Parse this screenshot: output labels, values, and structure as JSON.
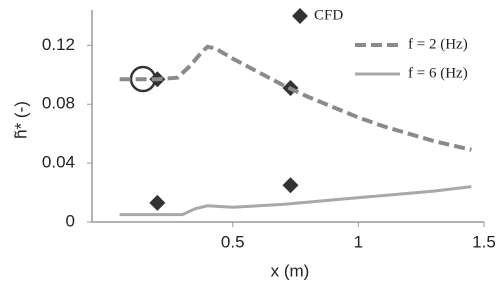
{
  "chart_data": {
    "type": "line",
    "xlabel": "x (m)",
    "ylabel": "h̃* (-)",
    "xlim": [
      -0.06,
      1.5
    ],
    "xticks": [
      0.5,
      1,
      1.5
    ],
    "ylim": [
      0,
      0.144
    ],
    "yticks": [
      0,
      0.04,
      0.08,
      0.12
    ],
    "legend": "top-right",
    "series": [
      {
        "name": "CFD",
        "color": "#333333",
        "mode": "markers",
        "x": [
          0.2,
          0.73,
          0.2,
          0.73
        ],
        "values": [
          0.097,
          0.091,
          0.013,
          0.025
        ]
      },
      {
        "name": "f = 2 (Hz)",
        "color": "#8a8a8a",
        "mode": "dashed",
        "x": [
          0.05,
          0.2,
          0.28,
          0.33,
          0.38,
          0.4,
          0.43,
          0.5,
          0.6,
          0.7,
          0.8,
          0.9,
          1.0,
          1.1,
          1.2,
          1.3,
          1.45
        ],
        "values": [
          0.097,
          0.097,
          0.098,
          0.106,
          0.116,
          0.119,
          0.118,
          0.111,
          0.102,
          0.093,
          0.085,
          0.078,
          0.071,
          0.065,
          0.06,
          0.055,
          0.049
        ]
      },
      {
        "name": "f = 6 (Hz)",
        "color": "#a8a8a8",
        "mode": "solid",
        "x": [
          0.05,
          0.25,
          0.3,
          0.35,
          0.4,
          0.5,
          0.7,
          0.9,
          1.1,
          1.3,
          1.45
        ],
        "values": [
          0.005,
          0.005,
          0.005,
          0.009,
          0.011,
          0.01,
          0.012,
          0.015,
          0.018,
          0.021,
          0.024
        ]
      }
    ]
  }
}
